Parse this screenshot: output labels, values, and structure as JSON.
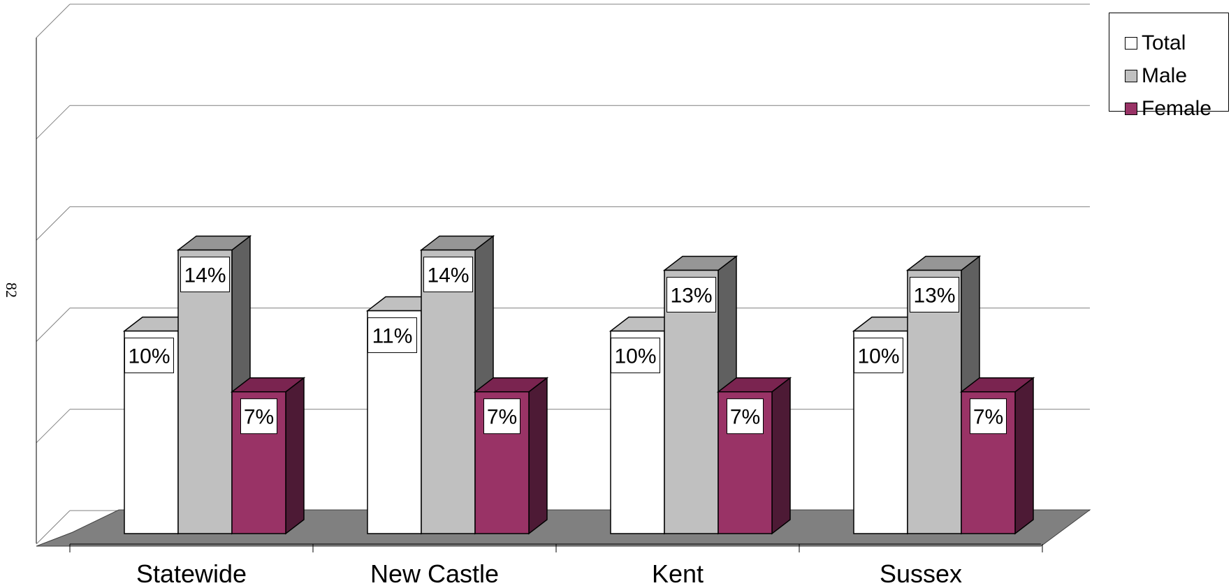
{
  "page_number": "82",
  "chart_data": {
    "type": "bar",
    "style": "3d-clustered-column",
    "categories": [
      "Statewide",
      "New Castle",
      "Kent",
      "Sussex"
    ],
    "series": [
      {
        "name": "Total",
        "values": [
          10,
          11,
          10,
          10
        ],
        "labels": [
          "10%",
          "11%",
          "10%",
          "10%"
        ],
        "color": "#ffffff",
        "top_color": "#c0c0c0",
        "side_color": "#808080"
      },
      {
        "name": "Male",
        "values": [
          14,
          14,
          13,
          13
        ],
        "labels": [
          "14%",
          "14%",
          "13%",
          "13%"
        ],
        "color": "#c0c0c0",
        "top_color": "#969696",
        "side_color": "#606060"
      },
      {
        "name": "Female",
        "values": [
          7,
          7,
          7,
          7
        ],
        "labels": [
          "7%",
          "7%",
          "7%",
          "7%"
        ],
        "color": "#993366",
        "top_color": "#7a2450",
        "side_color": "#4d1a35"
      }
    ],
    "ylim": [
      0,
      25
    ],
    "y_gridline_step": 5,
    "grid": true,
    "legend_position": "top-right",
    "title": "",
    "xlabel": "",
    "ylabel": "",
    "floor_color": "#808080"
  }
}
